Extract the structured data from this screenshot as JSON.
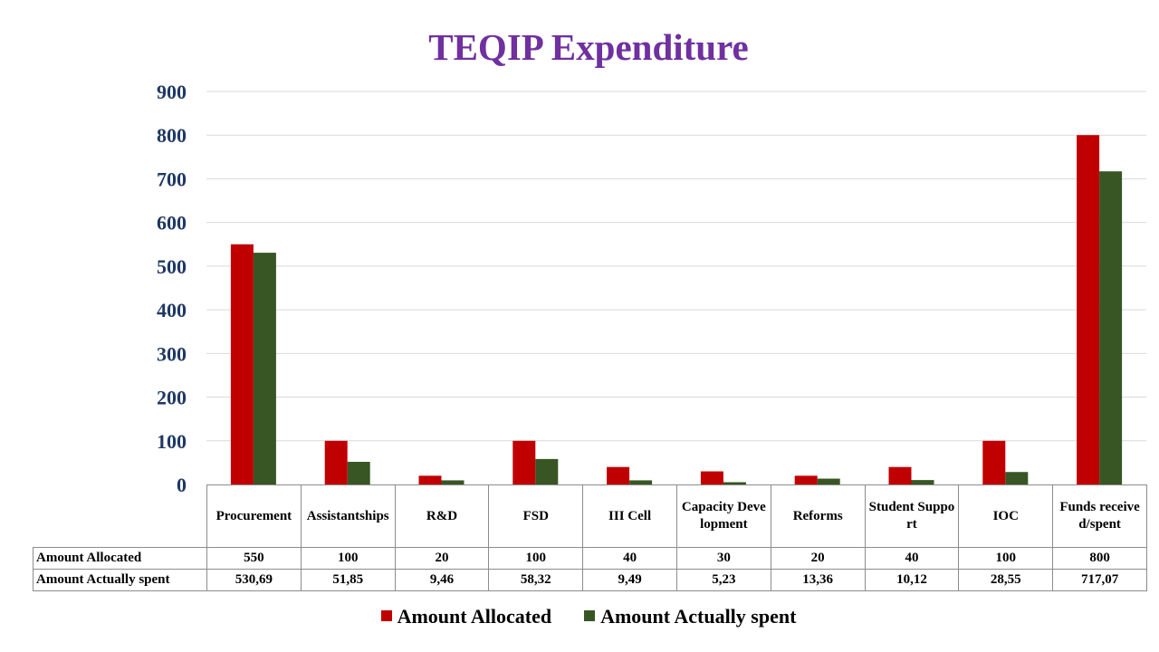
{
  "chart_data": {
    "type": "bar",
    "title": "TEQIP Expenditure",
    "categories": [
      "Procurement",
      "Assistantships",
      "R&D",
      "FSD",
      "III Cell",
      "Capacity Development",
      "Reforms",
      "Student Support",
      "IOC",
      "Funds received/spent"
    ],
    "series": [
      {
        "name": "Amount Allocated",
        "color": "#C00000",
        "values": [
          550,
          100,
          20,
          100,
          40,
          30,
          20,
          40,
          100,
          800
        ],
        "labels": [
          "550",
          "100",
          "20",
          "100",
          "40",
          "30",
          "20",
          "40",
          "100",
          "800"
        ]
      },
      {
        "name": "Amount Actually spent",
        "color": "#375623",
        "values": [
          530.69,
          51.85,
          9.46,
          58.32,
          9.49,
          5.23,
          13.36,
          10.12,
          28.55,
          717.07
        ],
        "labels": [
          "530,69",
          "51,85",
          "9,46",
          "58,32",
          "9,49",
          "5,23",
          "13,36",
          "10,12",
          "28,55",
          "717,07"
        ]
      }
    ],
    "ylim": [
      0,
      900
    ],
    "yticks": [
      "0",
      "100",
      "200",
      "300",
      "400",
      "500",
      "600",
      "700",
      "800",
      "900"
    ],
    "grid": true,
    "legend": "bottom",
    "data_table": true
  }
}
